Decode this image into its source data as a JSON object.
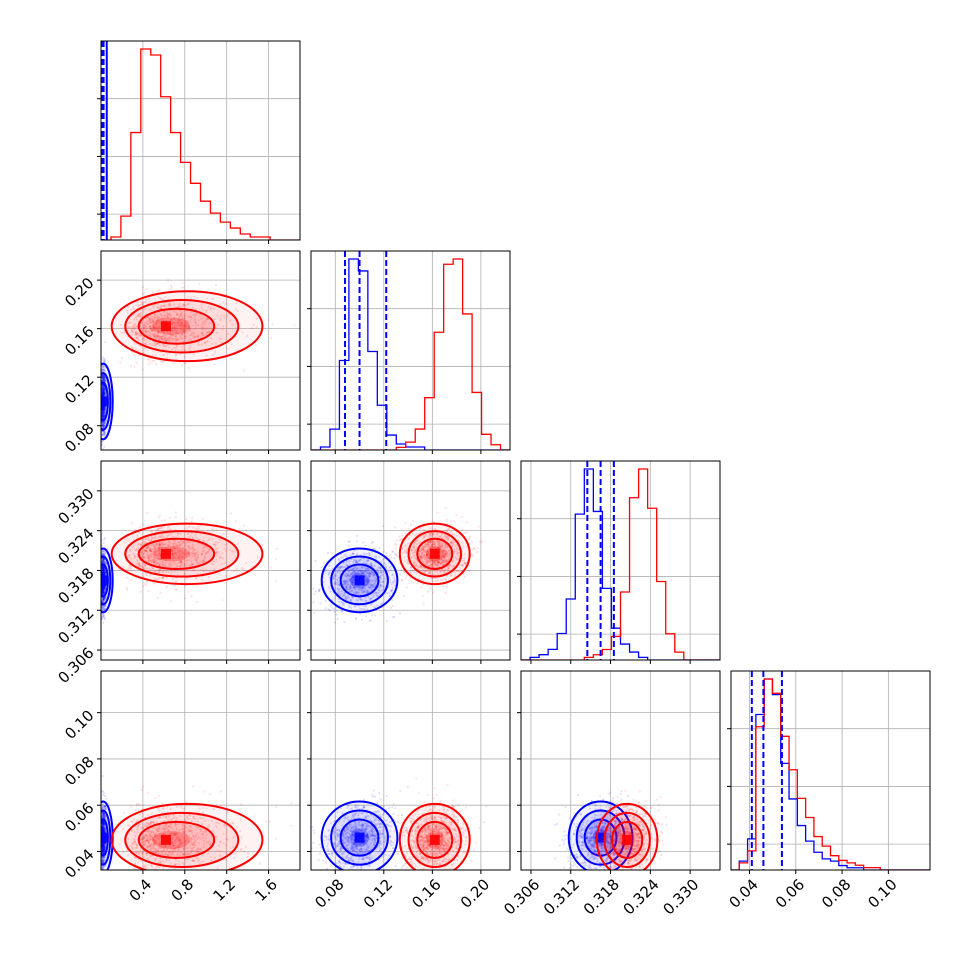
{
  "chart_data": {
    "type": "corner",
    "description_labels": [],
    "colors": {
      "series_a": "#0000ff",
      "series_b": "#ff0000",
      "grid": "#b0b0b0",
      "frame": "#000000"
    },
    "series": [
      {
        "name": "blue",
        "color": "#0000ff",
        "means": [
          0.02,
          0.1,
          0.3165,
          0.046
        ],
        "sigmas": [
          0.012,
          0.013,
          0.002,
          0.0065
        ],
        "corr": [
          0,
          0,
          0.1,
          0.1,
          0.25,
          0.2
        ],
        "quantiles": [
          [
            0.01,
            0.02,
            0.055
          ],
          [
            0.088,
            0.1,
            0.122
          ],
          [
            0.3145,
            0.3165,
            0.3185
          ],
          [
            0.041,
            0.046,
            0.054
          ]
        ]
      },
      {
        "name": "red",
        "color": "#ff0000",
        "means": [
          0.62,
          0.162,
          0.3205,
          0.045
        ],
        "sigmas": [
          0.24,
          0.012,
          0.0019,
          0.0065
        ],
        "corr": [
          0.05,
          0.05,
          0.05,
          0.1,
          0.1,
          0.1
        ]
      }
    ],
    "params": [
      {
        "range": [
          0,
          1.9
        ],
        "ticks": [
          0.4,
          0.8,
          1.2,
          1.6
        ],
        "tick_labels": [
          "0.4",
          "0.8",
          "1.2",
          "1.6"
        ]
      },
      {
        "range": [
          0.06,
          0.224
        ],
        "ticks": [
          0.08,
          0.12,
          0.16,
          0.2
        ],
        "tick_labels": [
          "0.08",
          "0.12",
          "0.16",
          "0.20"
        ]
      },
      {
        "range": [
          0.3045,
          0.3345
        ],
        "ticks": [
          0.306,
          0.312,
          0.318,
          0.324,
          0.33
        ],
        "tick_labels": [
          "0.306",
          "0.312",
          "0.318",
          "0.324",
          "0.330"
        ]
      },
      {
        "range": [
          0.032,
          0.118
        ],
        "ticks": [
          0.04,
          0.06,
          0.08,
          0.1
        ],
        "tick_labels": [
          "0.04",
          "0.06",
          "0.08",
          "0.10"
        ]
      }
    ],
    "histograms": {
      "red_p1": [
        0,
        1,
        8,
        36,
        64,
        62,
        48,
        36,
        26,
        19,
        13,
        9,
        6,
        4,
        2,
        1,
        1,
        0,
        0,
        0
      ],
      "red_p2": [
        0,
        0,
        0,
        0,
        0,
        0,
        0,
        0,
        0,
        1,
        3,
        8,
        20,
        45,
        71,
        73,
        52,
        22,
        6,
        2,
        0
      ],
      "blue_p2": [
        0,
        1,
        7,
        30,
        64,
        60,
        33,
        15,
        5,
        2,
        1,
        1,
        0,
        0,
        0,
        0,
        0,
        0,
        0,
        0,
        0
      ],
      "red_p3": [
        0,
        0,
        0,
        0,
        0,
        0,
        0,
        1,
        2,
        4,
        9,
        26,
        62,
        73,
        58,
        30,
        10,
        3,
        0,
        0,
        0,
        0
      ],
      "blue_p3": [
        0,
        1,
        2,
        4,
        10,
        23,
        55,
        72,
        56,
        27,
        12,
        6,
        3,
        1,
        0,
        0,
        0,
        0,
        0,
        0,
        0,
        0
      ],
      "red_p4": [
        0,
        3,
        8,
        60,
        80,
        74,
        56,
        42,
        30,
        22,
        14,
        10,
        6,
        4,
        3,
        2,
        1,
        1,
        0,
        0,
        0,
        0,
        0,
        0
      ],
      "blue_p4": [
        0,
        4,
        14,
        70,
        86,
        79,
        48,
        32,
        20,
        13,
        8,
        5,
        4,
        2,
        1,
        1,
        0,
        0,
        0,
        0,
        0,
        0,
        0,
        0
      ]
    }
  }
}
